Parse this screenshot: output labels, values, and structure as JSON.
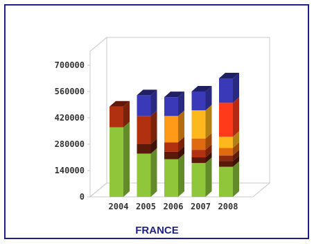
{
  "chart_data": {
    "type": "bar",
    "stacked": true,
    "three_d": true,
    "title": "FRANCE",
    "categories": [
      "2004",
      "2005",
      "2006",
      "2007",
      "2008"
    ],
    "yticks": [
      "0",
      "140000",
      "280000",
      "420000",
      "560000",
      "700000"
    ],
    "ylim": [
      0,
      700000
    ],
    "grid": false,
    "legend": "none",
    "series": [
      {
        "color": "#8fc63a",
        "values": [
          370000,
          230000,
          200000,
          180000,
          160000
        ]
      },
      {
        "color": "#5a1a0a",
        "values": [
          0,
          50000,
          40000,
          30000,
          30000
        ]
      },
      {
        "color": "#8b2a10",
        "values": [
          0,
          0,
          0,
          0,
          30000
        ]
      },
      {
        "color": "#b03010",
        "values": [
          110000,
          150000,
          50000,
          40000,
          0
        ]
      },
      {
        "color": "#e06a10",
        "values": [
          0,
          0,
          0,
          60000,
          40000
        ]
      },
      {
        "color": "#ff9a18",
        "values": [
          0,
          0,
          140000,
          0,
          0
        ]
      },
      {
        "color": "#ffb71e",
        "values": [
          0,
          0,
          0,
          150000,
          60000
        ]
      },
      {
        "color": "#ff3a1a",
        "values": [
          0,
          0,
          0,
          0,
          180000
        ]
      },
      {
        "color": "#3a3ab8",
        "values": [
          0,
          110000,
          100000,
          100000,
          130000
        ]
      }
    ]
  }
}
